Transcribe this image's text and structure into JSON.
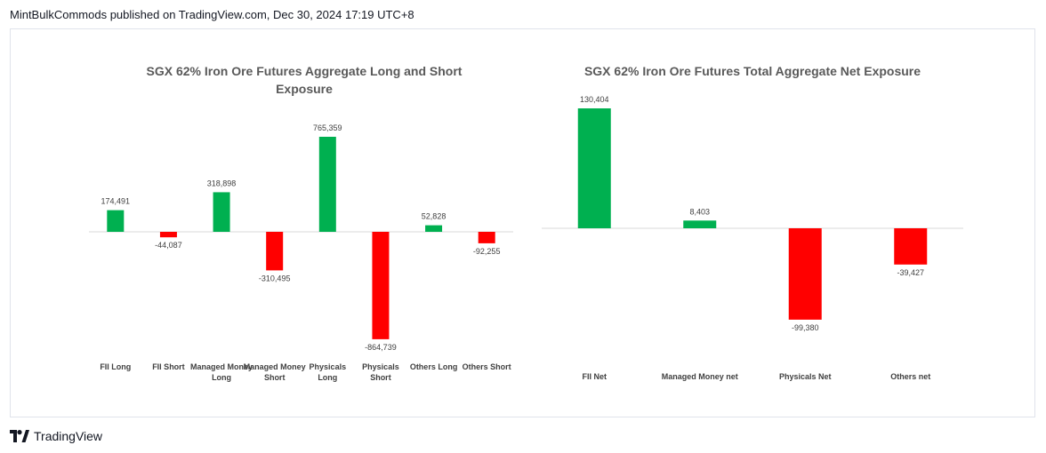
{
  "header": {
    "publish_line": "MintBulkCommods published on TradingView.com, Dec 30, 2024 17:19 UTC+8"
  },
  "footer": {
    "brand": "TradingView"
  },
  "colors": {
    "positive": "#00b050",
    "negative": "#ff0000",
    "title": "#595959",
    "axis": "#d9d9d9",
    "label": "#404040"
  },
  "chart_data": [
    {
      "type": "bar",
      "title": "SGX 62% Iron Ore Futures Aggregate Long and Short Exposure",
      "categories": [
        "FII Long",
        "FII Short",
        "Managed Money Long",
        "Managed Money Short",
        "Physicals Long",
        "Physicals Short",
        "Others Long",
        "Others Short"
      ],
      "values": [
        174491,
        -44087,
        318898,
        -310495,
        765359,
        -864739,
        52828,
        -92255
      ],
      "value_labels": [
        "174,491",
        "-44,087",
        "318,898",
        "-310,495",
        "765,359",
        "-864,739",
        "52,828",
        "-92,255"
      ],
      "ylim": [
        -864739,
        765359
      ],
      "grid": false,
      "legend": "none"
    },
    {
      "type": "bar",
      "title": "SGX 62% Iron Ore Futures Total Aggregate Net Exposure",
      "categories": [
        "FII Net",
        "Managed Money net",
        "Physicals Net",
        "Others net"
      ],
      "values": [
        130404,
        8403,
        -99380,
        -39427
      ],
      "value_labels": [
        "130,404",
        "8,403",
        "-99,380",
        "-39,427"
      ],
      "ylim": [
        -99380,
        130404
      ],
      "grid": false,
      "legend": "none"
    }
  ]
}
